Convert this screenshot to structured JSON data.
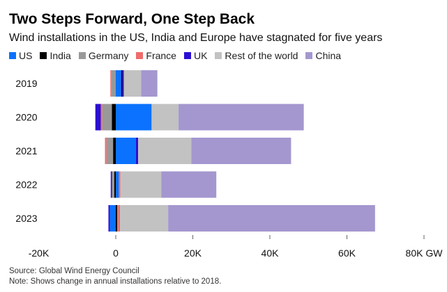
{
  "chart_data": {
    "type": "bar",
    "orientation": "horizontal",
    "stacked": true,
    "title": "Two Steps Forward, One Step Back",
    "subtitle": "Wind installations in the US, India and Europe have stagnated for five years",
    "categories": [
      "2019",
      "2020",
      "2021",
      "2022",
      "2023"
    ],
    "series": [
      {
        "name": "US",
        "color": "#0a72ff",
        "values": [
          1.4,
          9.3,
          5.2,
          0.8,
          -1.5
        ]
      },
      {
        "name": "India",
        "color": "#000000",
        "values": [
          0.3,
          -1.0,
          -0.7,
          -0.4,
          0.4
        ]
      },
      {
        "name": "Germany",
        "color": "#999999",
        "values": [
          -1.2,
          -2.5,
          -1.7,
          -0.6,
          0.2
        ]
      },
      {
        "name": "France",
        "color": "#f06b6b",
        "values": [
          -0.2,
          -0.4,
          -0.4,
          0.4,
          0.5
        ]
      },
      {
        "name": "UK",
        "color": "#2a0fd4",
        "values": [
          0.4,
          -1.4,
          0.6,
          -0.3,
          -0.4
        ]
      },
      {
        "name": "Rest of the world",
        "color": "#c2c2c2",
        "values": [
          4.5,
          7.0,
          13.8,
          10.6,
          12.5
        ]
      },
      {
        "name": "China",
        "color": "#a497cf",
        "values": [
          4.2,
          32.5,
          25.9,
          14.3,
          53.7
        ]
      }
    ],
    "xlabel": "",
    "ylabel": "",
    "xlim": [
      -20,
      80
    ],
    "x_ticks": [
      "-20K",
      "0",
      "20K",
      "40K",
      "60K",
      "80K GW"
    ],
    "x_tick_values": [
      -20,
      0,
      20,
      40,
      60,
      80
    ],
    "unit": "GW",
    "legend_position": "top-left",
    "grid": false
  },
  "footer": {
    "source": "Source: Global Wind Energy Council",
    "note": "Note: Shows change in annual installations relative to 2018."
  }
}
